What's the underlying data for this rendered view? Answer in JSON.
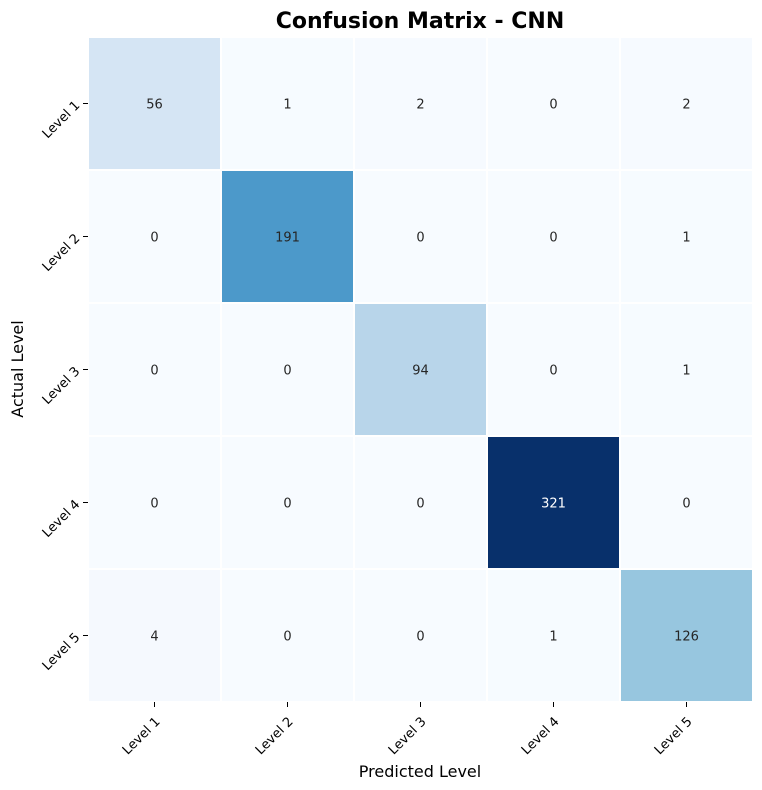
{
  "chart_data": {
    "type": "heatmap",
    "title": "Confusion Matrix - CNN",
    "xlabel": "Predicted Level",
    "ylabel": "Actual Level",
    "x_categories": [
      "Level 1",
      "Level 2",
      "Level 3",
      "Level 4",
      "Level 5"
    ],
    "y_categories": [
      "Level 1",
      "Level 2",
      "Level 3",
      "Level 4",
      "Level 5"
    ],
    "values": [
      [
        56,
        1,
        2,
        0,
        2
      ],
      [
        0,
        191,
        0,
        0,
        1
      ],
      [
        0,
        0,
        94,
        0,
        1
      ],
      [
        0,
        0,
        0,
        321,
        0
      ],
      [
        4,
        0,
        0,
        1,
        126
      ]
    ],
    "colormap": "Blues",
    "colorbar": false,
    "grid": false
  }
}
